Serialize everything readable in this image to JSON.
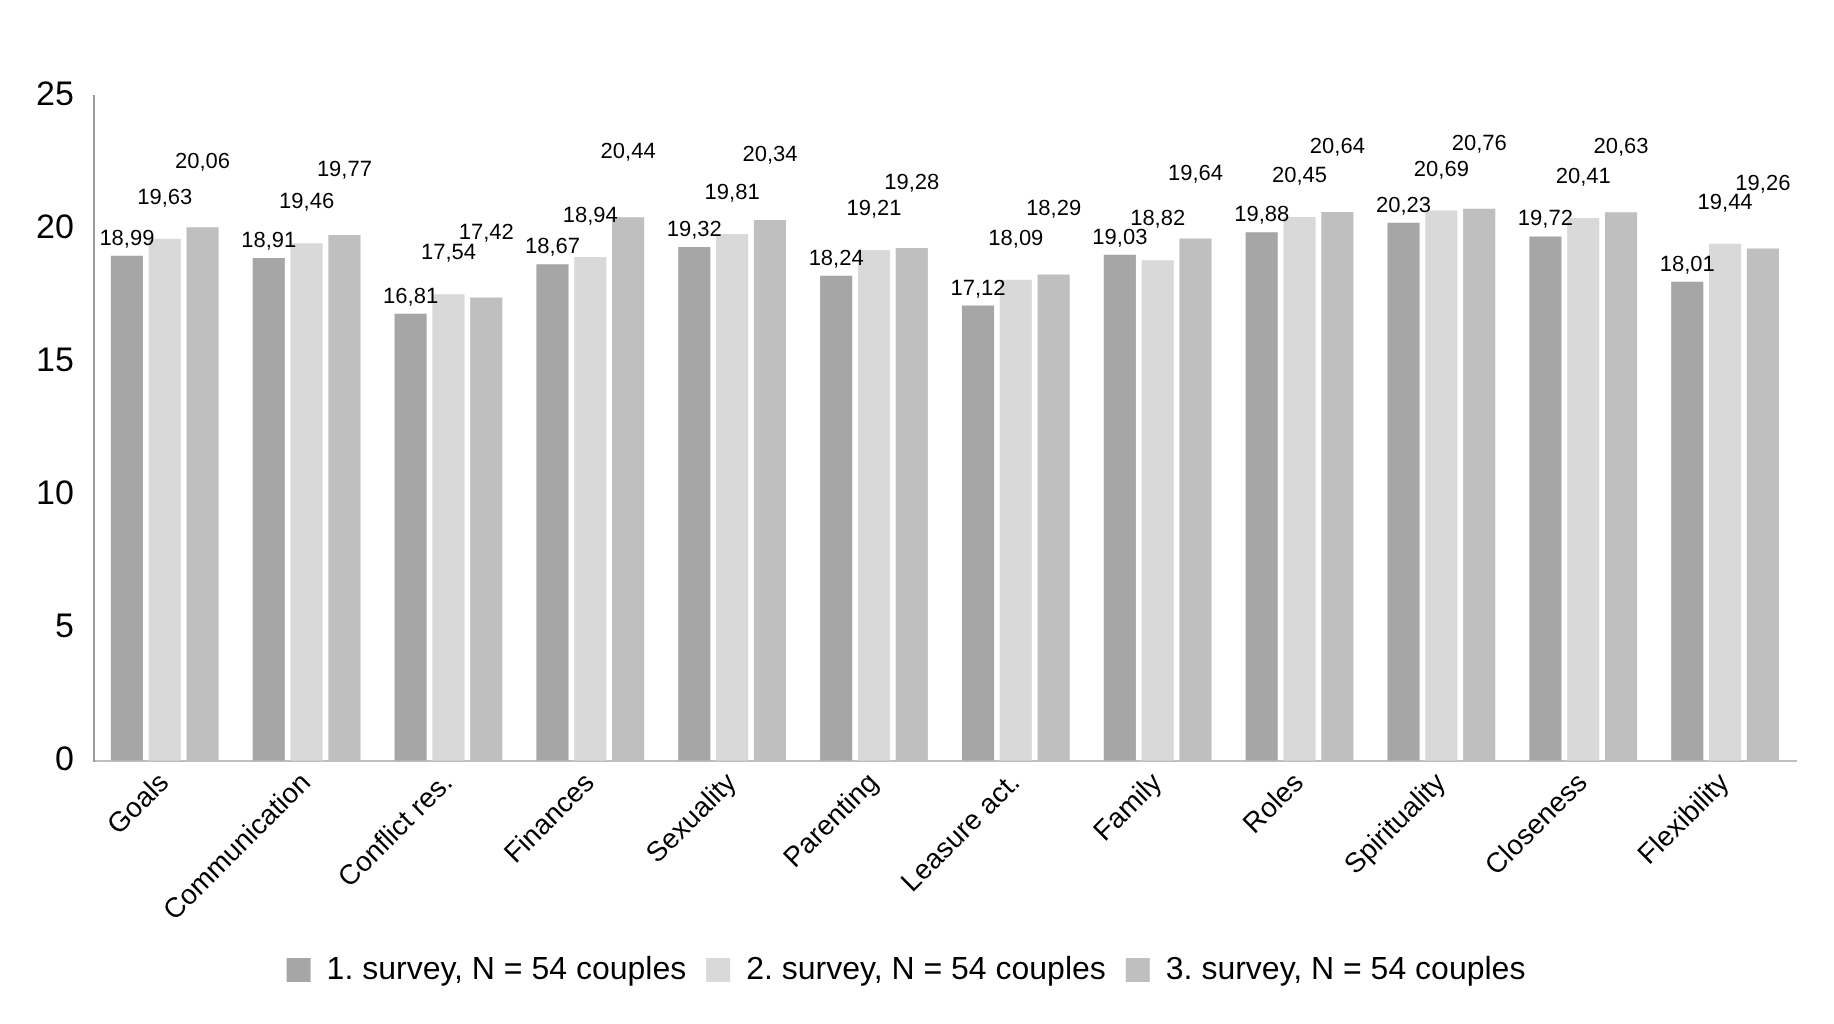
{
  "chart_data": {
    "type": "bar",
    "categories": [
      "Goals",
      "Communication",
      "Conflict res.",
      "Finances",
      "Sexuality",
      "Parenting",
      "Leasure act.",
      "Family",
      "Roles",
      "Spirituality",
      "Closeness",
      "Flexibility"
    ],
    "series": [
      {
        "name": "1. survey, N = 54 couples",
        "color": "#a6a6a6",
        "values": [
          18.99,
          18.91,
          16.81,
          18.67,
          19.32,
          18.24,
          17.12,
          19.03,
          19.88,
          20.23,
          19.72,
          18.01
        ],
        "value_labels": [
          "18,99",
          "18,91",
          "16,81",
          "18,67",
          "19,32",
          "18,24",
          "17,12",
          "19,03",
          "19,88",
          "20,23",
          "19,72",
          "18,01"
        ]
      },
      {
        "name": "2. survey, N = 54 couples",
        "color": "#d9d9d9",
        "values": [
          19.63,
          19.46,
          17.54,
          18.94,
          19.81,
          19.21,
          18.09,
          18.82,
          20.45,
          20.69,
          20.41,
          19.44
        ],
        "value_labels": [
          "19,63",
          "19,46",
          "17,54",
          "18,94",
          "19,81",
          "19,21",
          "18,09",
          "18,82",
          "20,45",
          "20,69",
          "20,41",
          "19,44"
        ]
      },
      {
        "name": "3. survey, N = 54 couples",
        "color": "#bfbfbf",
        "values": [
          20.06,
          19.77,
          17.42,
          20.44,
          20.34,
          19.28,
          18.29,
          19.64,
          20.64,
          20.76,
          20.63,
          19.26
        ],
        "value_labels": [
          "20,06",
          "19,77",
          "17,42",
          "20,44",
          "20,34",
          "19,28",
          "18,29",
          "19,64",
          "20,64",
          "20,76",
          "20,63",
          "19,26"
        ]
      }
    ],
    "ylim": [
      0,
      25
    ],
    "yticks": [
      0,
      5,
      10,
      15,
      20,
      25
    ],
    "grid": false,
    "legend": "bottom"
  }
}
